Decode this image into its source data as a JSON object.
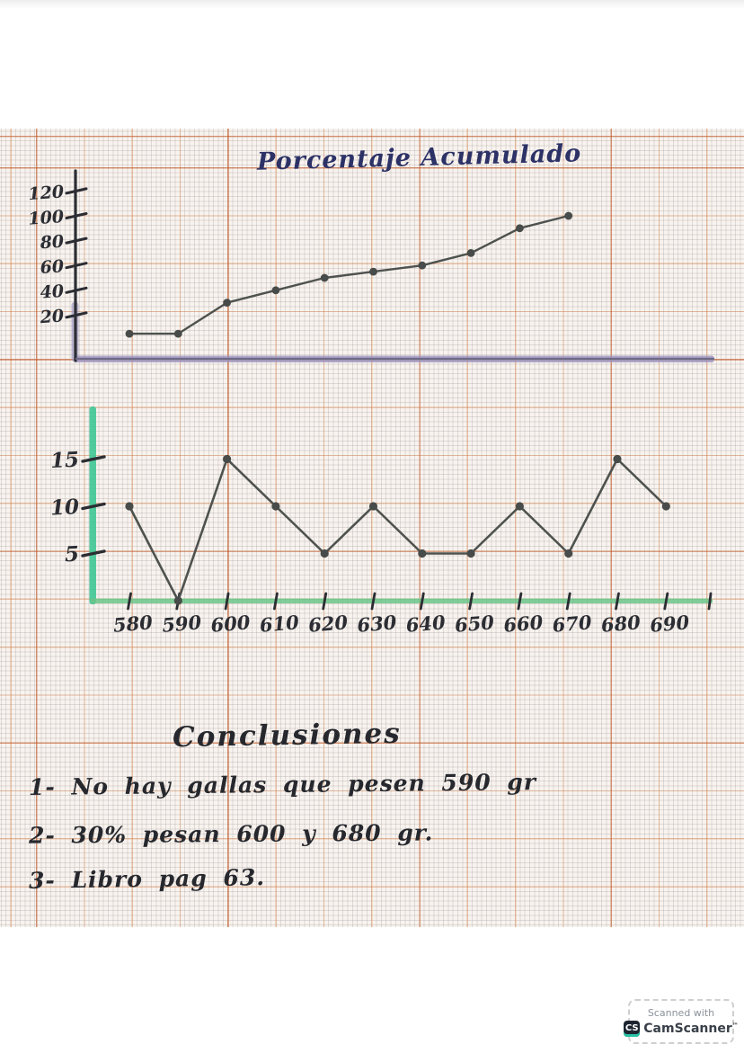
{
  "page": {
    "title": "Porcentaje Acumulado",
    "conclusions_heading": "Conclusiones",
    "conclusions": [
      "1- No hay gallas que pesen 590 gr",
      "2- 30% pesan 600 y 680 gr.",
      "3- Libro pag 63."
    ]
  },
  "scanner_badge": {
    "line1": "Scanned with",
    "logo": "CS",
    "app_name": "CamScanner",
    "tm": "™"
  },
  "colors": {
    "ink": "#2b2d33",
    "title_ink": "#2c3166",
    "data_line": "#4e524f",
    "data_point": "#474b49",
    "cumulative_axis": "#9a92bf",
    "cumulative_axis_core": "#6f6a85",
    "frequency_axis": "#3ec693",
    "baseline_green": "#6cc489",
    "grid_major": "#de8246",
    "badge_teal": "#27c2a4",
    "badge_dark": "#1c2430"
  },
  "chart_data": [
    {
      "id": "cumulative-percentage",
      "type": "line",
      "title": "Porcentaje Acumulado",
      "x": [
        580,
        590,
        600,
        610,
        620,
        630,
        640,
        650,
        660,
        670
      ],
      "values": [
        5,
        5,
        30,
        40,
        50,
        55,
        60,
        70,
        90,
        100
      ],
      "yticks": [
        20,
        40,
        60,
        80,
        100,
        120
      ],
      "ylim": [
        0,
        130
      ],
      "grid": "millimeter paper",
      "legend": "none"
    },
    {
      "id": "frequency",
      "type": "line",
      "x": [
        580,
        590,
        600,
        610,
        620,
        630,
        640,
        650,
        660,
        670,
        680,
        690
      ],
      "values": [
        10,
        0,
        15,
        10,
        5,
        10,
        5,
        5,
        10,
        5,
        15,
        10
      ],
      "yticks": [
        5,
        10,
        15
      ],
      "ylim": [
        0,
        18
      ],
      "grid": "millimeter paper",
      "legend": "none"
    }
  ]
}
